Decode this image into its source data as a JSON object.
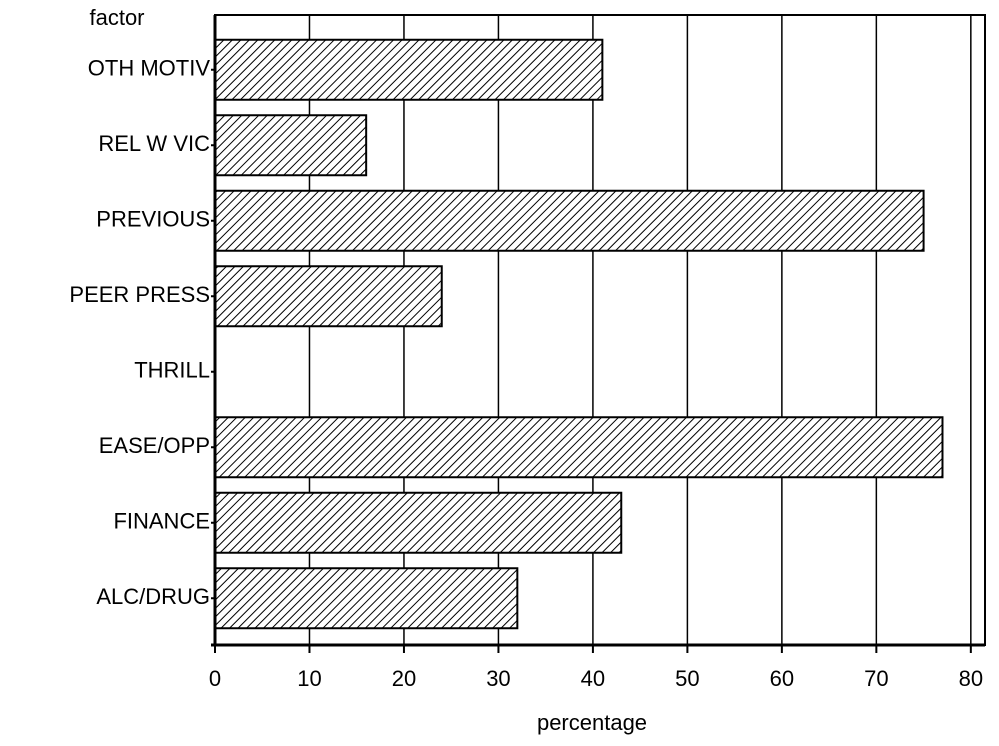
{
  "chart_data": {
    "type": "barh",
    "y_label": "factor",
    "x_label": "percentage",
    "categories": [
      "OTH MOTIV",
      "REL W VIC",
      "PREVIOUS",
      "PEER PRESS",
      "THRILL",
      "EASE/OPP",
      "FINANCE",
      "ALC/DRUG"
    ],
    "values": [
      41,
      16,
      75,
      24,
      0,
      77,
      43,
      32
    ],
    "color": "#000000",
    "xlim": [
      0,
      81.5
    ],
    "xticks": [
      0,
      10,
      20,
      30,
      40,
      50,
      60,
      70,
      80
    ],
    "grid": true
  }
}
